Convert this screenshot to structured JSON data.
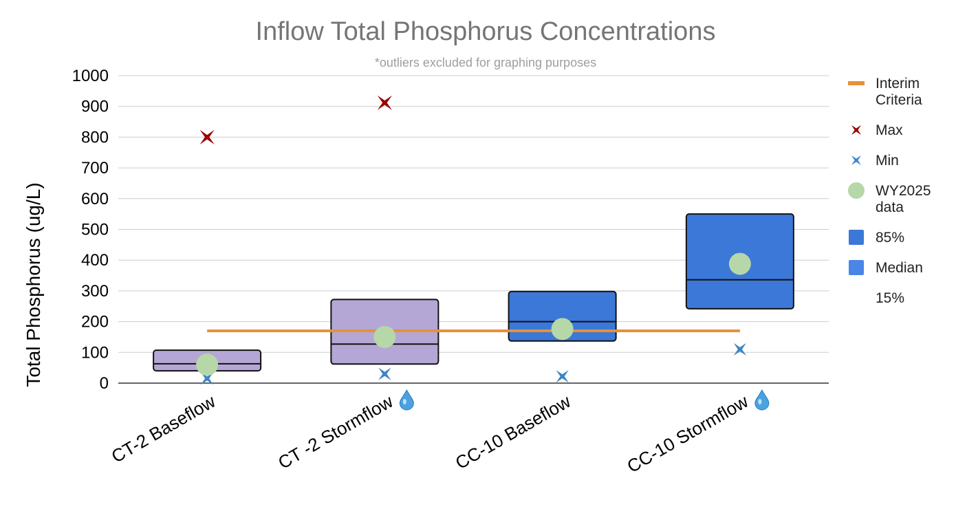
{
  "chart_data": {
    "type": "box",
    "title": "Inflow Total Phosphorus Concentrations",
    "subtitle": "*outliers excluded for graphing purposes",
    "ylabel": "Total Phosphorus (ug/L)",
    "xlabel": "",
    "ylim": [
      0,
      1000
    ],
    "yticks": [
      0,
      100,
      200,
      300,
      400,
      500,
      600,
      700,
      800,
      900,
      1000
    ],
    "interim_criteria": 170,
    "categories": [
      {
        "label": "CT-2 Baseflow",
        "stormflow": false,
        "color": "#b4a7d6",
        "p15": 40,
        "median": 63,
        "p85": 107,
        "max": 800,
        "min": 15,
        "wy2025": 60
      },
      {
        "label": "CT -2 Stormflow",
        "stormflow": true,
        "color": "#b4a7d6",
        "p15": 62,
        "median": 127,
        "p85": 272,
        "max": 912,
        "min": 30,
        "wy2025": 150
      },
      {
        "label": "CC-10 Baseflow",
        "stormflow": false,
        "color": "#3c78d8",
        "p15": 137,
        "median": 200,
        "p85": 298,
        "max": null,
        "min": 22,
        "wy2025": 176
      },
      {
        "label": "CC-10 Stormflow",
        "stormflow": true,
        "color": "#3c78d8",
        "p15": 242,
        "median": 336,
        "p85": 550,
        "max": null,
        "min": 110,
        "wy2025": 388
      }
    ],
    "legend": [
      {
        "key": "interim",
        "label_lines": [
          "Interim",
          "Criteria"
        ],
        "color": "#e69138"
      },
      {
        "key": "max",
        "label_lines": [
          "Max"
        ],
        "color": "#990000"
      },
      {
        "key": "min",
        "label_lines": [
          "Min"
        ],
        "color": "#3d85c6"
      },
      {
        "key": "wy2025",
        "label_lines": [
          "WY2025",
          "data"
        ],
        "color": "#b6d7a8"
      },
      {
        "key": "p85",
        "label_lines": [
          "85%"
        ],
        "color": "#3c78d8"
      },
      {
        "key": "median",
        "label_lines": [
          "Median"
        ],
        "color": "#4a86e8"
      },
      {
        "key": "p15",
        "label_lines": [
          "15%"
        ],
        "color": ""
      }
    ]
  }
}
